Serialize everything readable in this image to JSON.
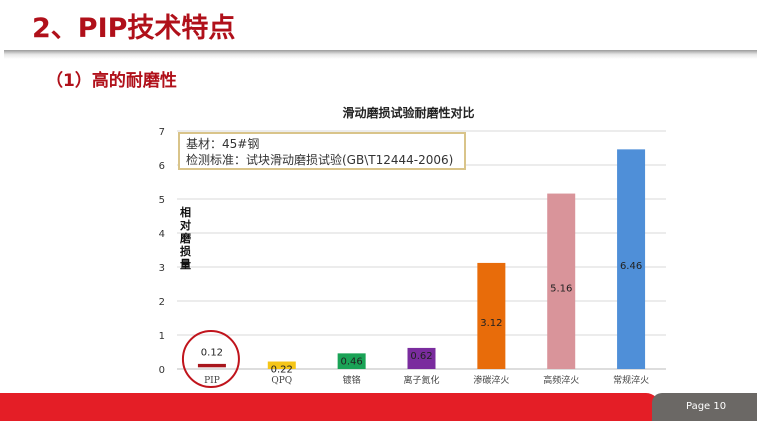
{
  "slide": {
    "title": "2、PIP技术特点",
    "subtitle": "（1）高的耐磨性",
    "page": "Page  10"
  },
  "legend": {
    "line1": "基材：45#钢",
    "line2": "检测标准：试块滑动磨损试验(GB\\T12444-2006)"
  },
  "chart_data": {
    "type": "bar",
    "title": "滑动磨损试验耐磨性对比",
    "ylabel": "相对磨损量",
    "xlabel": "",
    "ylim": [
      0,
      7
    ],
    "yticks": [
      0,
      1,
      2,
      3,
      4,
      5,
      6,
      7
    ],
    "grid": true,
    "categories": [
      "PIP",
      "QPQ",
      "镀铬",
      "离子氮化",
      "渗碳淬火",
      "高频淬火",
      "常规淬火"
    ],
    "values": [
      0.12,
      0.22,
      0.46,
      0.62,
      3.12,
      5.16,
      6.46
    ],
    "colors": [
      "#a8151c",
      "#f5c518",
      "#1aa356",
      "#7a2c9e",
      "#e86c0a",
      "#d9949a",
      "#4f8fd8"
    ],
    "highlight": "PIP",
    "highlight_color": "#c0141c"
  }
}
